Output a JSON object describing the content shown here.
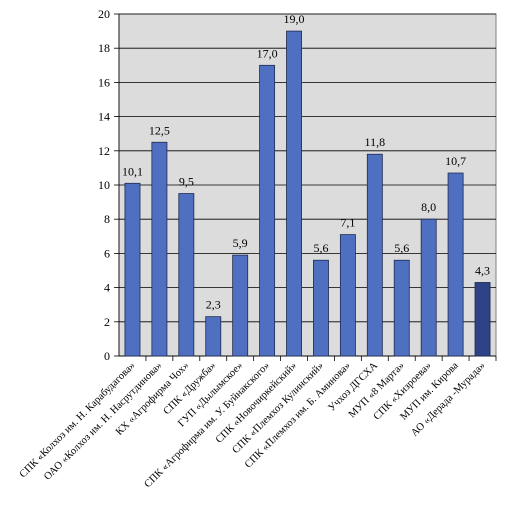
{
  "chart_data": {
    "type": "bar",
    "title": "",
    "xlabel": "",
    "ylabel": "",
    "ylim": [
      0,
      20
    ],
    "yticks": [
      0,
      2,
      4,
      6,
      8,
      10,
      12,
      14,
      16,
      18,
      20
    ],
    "grid": true,
    "legend": "none",
    "categories": [
      "СПК «Колхоз им. Н. Карабудагова»",
      "ОАО «Колхоз им. Н. Насрутдинова»",
      "КХ «Агрофирма Чох»",
      "СПК «Дружба»",
      "ГУП «Дылымское»",
      "СПК «Агрофирма им. У. Буйнакского»",
      "СПК «Новочиркейский»",
      "СПК «Племхоз Кулинский»",
      "СПК «Племхоз им. Б. Аминова»",
      "Учхоз ДГСХА",
      "МУП «8 Марта»",
      "СПК «Хизроева»",
      "МУП им. Кирова",
      "АО «Дерада -Мурада»"
    ],
    "values": [
      10.1,
      12.5,
      9.5,
      2.3,
      5.9,
      17.0,
      19.0,
      5.6,
      7.1,
      11.8,
      5.6,
      8.0,
      10.7,
      4.3
    ],
    "value_labels": [
      "10,1",
      "12,5",
      "9,5",
      "2,3",
      "5,9",
      "17,0",
      "19,0",
      "5,6",
      "7,1",
      "11,8",
      "5,6",
      "8,0",
      "10,7",
      "4,3"
    ],
    "colors": {
      "bar": "#4f6fc0",
      "bar_last": "#2d4386",
      "bar_stroke": "#1e2a52",
      "plot_bg": "#dcdcdc",
      "grid": "#000000"
    }
  }
}
